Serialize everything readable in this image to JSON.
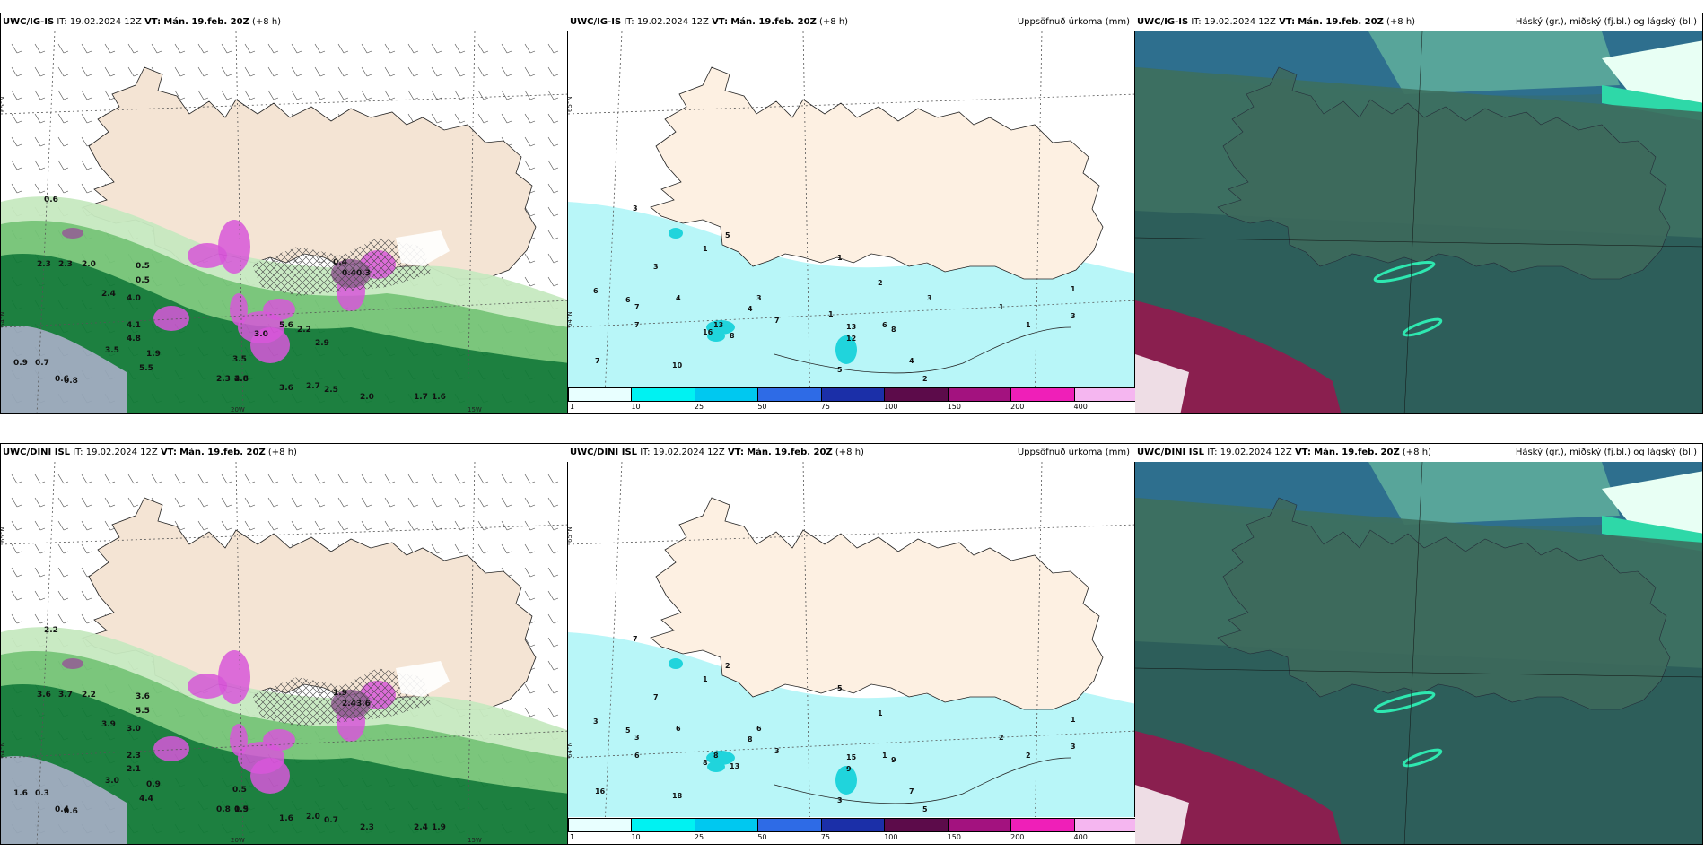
{
  "panels": [
    {
      "id": "p1",
      "model": "UWC/IG-IS",
      "it_label": "IT:",
      "it": "19.02.2024 12Z",
      "vt_label": "VT:",
      "vt": "Mán. 19.feb. 20Z",
      "lead": "(+8 h)",
      "right_title": "",
      "type": "precip_type"
    },
    {
      "id": "p2",
      "model": "UWC/IG-IS",
      "it_label": "IT:",
      "it": "19.02.2024 12Z",
      "vt_label": "VT:",
      "vt": "Mán. 19.feb. 20Z",
      "lead": "(+8 h)",
      "right_title": "Uppsöfnuð úrkoma (mm)",
      "type": "accum"
    },
    {
      "id": "p3",
      "model": "UWC/IG-IS",
      "it_label": "IT:",
      "it": "19.02.2024 12Z",
      "vt_label": "VT:",
      "vt": "Mán. 19.feb. 20Z",
      "lead": "(+8 h)",
      "right_title": "Háský (gr.), miðský (fj.bl.) og lágský (bl.)",
      "type": "clouds"
    },
    {
      "id": "p4",
      "model": "UWC/DINI ISL",
      "it_label": "IT:",
      "it": "19.02.2024 12Z",
      "vt_label": "VT:",
      "vt": "Mán. 19.feb. 20Z",
      "lead": "(+8 h)",
      "right_title": "",
      "type": "precip_type"
    },
    {
      "id": "p5",
      "model": "UWC/DINI ISL",
      "it_label": "IT:",
      "it": "19.02.2024 12Z",
      "vt_label": "VT:",
      "vt": "Mán. 19.feb. 20Z",
      "lead": "(+8 h)",
      "right_title": "Uppsöfnuð úrkoma (mm)",
      "type": "accum"
    },
    {
      "id": "p6",
      "model": "UWC/DINI ISL",
      "it_label": "IT:",
      "it": "19.02.2024 12Z",
      "vt_label": "VT:",
      "vt": "Mán. 19.feb. 20Z",
      "lead": "(+8 h)",
      "right_title": "Háský (gr.), miðský (fj.bl.) og lágský (bl.)",
      "type": "clouds"
    }
  ],
  "colorbar": {
    "ticks": [
      "1",
      "10",
      "25",
      "50",
      "75",
      "100",
      "150",
      "200",
      "400"
    ],
    "colors": [
      "#e8ffff",
      "#00f2f2",
      "#00c8f0",
      "#2e6be6",
      "#1b2fa8",
      "#5c0b4a",
      "#a3127f",
      "#ef1fb8",
      "#f5b6f0"
    ]
  },
  "grid_labels": {
    "lat_65": "65°N",
    "lat_64": "64°N",
    "lon_20w": "20W",
    "lon_15w": "15W",
    "lon_25w": "25W"
  },
  "labels_p1": [
    "0.6",
    "2.3",
    "2.3",
    "2.0",
    "0.5",
    "0.5",
    "2.4",
    "4.0",
    "4.1",
    "4.8",
    "5.5",
    "3.5",
    "3.5",
    "4.8",
    "0.9",
    "0.7",
    "0.6",
    "0.8",
    "1.9",
    "2.3",
    "2.6",
    "3.6",
    "2.7",
    "2.5",
    "2.0",
    "1.7",
    "1.6",
    "0.4",
    "0.4",
    "0.3",
    "3.0",
    "2.2",
    "2.9",
    "5.6"
  ],
  "labels_p2": [
    "3",
    "1",
    "5",
    "3",
    "6",
    "6",
    "7",
    "7",
    "4",
    "16",
    "13",
    "8",
    "10",
    "7",
    "4",
    "3",
    "7",
    "13",
    "12",
    "8",
    "4",
    "1",
    "2",
    "2",
    "1",
    "1",
    "3",
    "1",
    "6",
    "5",
    "1",
    "3"
  ],
  "labels_p4": [
    "2.2",
    "3.6",
    "3.7",
    "2.2",
    "3.6",
    "5.5",
    "3.9",
    "3.0",
    "2.3",
    "2.1",
    "4.4",
    "3.0",
    "0.5",
    "0.5",
    "1.6",
    "0.3",
    "0.4",
    "0.6",
    "0.9",
    "0.8",
    "1.9",
    "1.6",
    "2.0",
    "0.7",
    "2.3",
    "2.4",
    "1.9",
    "1.9",
    "2.4",
    "3.6"
  ],
  "labels_p5": [
    "7",
    "1",
    "2",
    "7",
    "3",
    "5",
    "3",
    "6",
    "6",
    "8",
    "8",
    "13",
    "18",
    "16",
    "8",
    "6",
    "3",
    "15",
    "9",
    "9",
    "7",
    "5",
    "1",
    "5",
    "2",
    "2",
    "3",
    "1",
    "1",
    "3"
  ],
  "colors": {
    "land": "#f4e4d4",
    "land_p2": "#fdf0e2",
    "sea": "#ffffff",
    "precip_light": "#c7e9c0",
    "precip_mid": "#74c476",
    "precip_dark": "#006d2c",
    "snow": "#b87cc8",
    "snow_bright": "#d64fd8",
    "cloud_high": "#2e7a8a",
    "cloud_mid": "#3c6a5a",
    "cloud_low": "#8a1f4f",
    "cyan": "#b8f6f8"
  }
}
